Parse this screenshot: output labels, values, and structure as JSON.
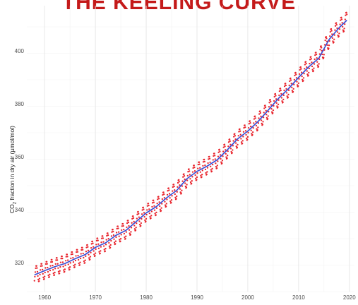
{
  "chart_data": {
    "type": "line",
    "title": "THE KEELING CURVE",
    "xlabel": "",
    "ylabel_parts": [
      "CO",
      "2",
      " fraction in dry air (µmol/mol)"
    ],
    "xlim": [
      1956.5,
      2021
    ],
    "ylim": [
      309,
      417
    ],
    "x_ticks": [
      1960,
      1970,
      1980,
      1990,
      2000,
      2010,
      2020
    ],
    "y_ticks": [
      320,
      340,
      360,
      380,
      400
    ],
    "grid": true,
    "series": [
      {
        "style": "trend line",
        "color": "#3b4fd6",
        "x": [
          1958,
          1960,
          1962,
          1964,
          1966,
          1968,
          1970,
          1972,
          1974,
          1976,
          1978,
          1980,
          1982,
          1984,
          1986,
          1988,
          1990,
          1992,
          1994,
          1996,
          1998,
          2000,
          2002,
          2004,
          2006,
          2008,
          2010,
          2012,
          2014,
          2016,
          2018,
          2019.5
        ],
        "values": [
          315.3,
          316.9,
          318.4,
          319.6,
          321.4,
          323.0,
          325.7,
          327.4,
          330.2,
          332.1,
          335.4,
          338.7,
          341.1,
          344.4,
          347.2,
          351.6,
          354.4,
          356.4,
          358.8,
          362.6,
          366.7,
          369.6,
          373.2,
          377.5,
          381.9,
          385.6,
          389.9,
          393.9,
          397.2,
          404.2,
          408.7,
          411.5
        ]
      },
      {
        "style": "monthly observations (dotted)",
        "color": "#e8232b",
        "seasonal_amplitude_ppm": 3.2,
        "x": [
          1958,
          1960,
          1962,
          1964,
          1966,
          1968,
          1970,
          1972,
          1974,
          1976,
          1978,
          1980,
          1982,
          1984,
          1986,
          1988,
          1990,
          1992,
          1994,
          1996,
          1998,
          2000,
          2002,
          2004,
          2006,
          2008,
          2010,
          2012,
          2014,
          2016,
          2018,
          2019.5
        ],
        "values": [
          315.3,
          316.9,
          318.4,
          319.6,
          321.4,
          323.0,
          325.7,
          327.4,
          330.2,
          332.1,
          335.4,
          338.7,
          341.1,
          344.4,
          347.2,
          351.6,
          354.4,
          356.4,
          358.8,
          362.6,
          366.7,
          369.6,
          373.2,
          377.5,
          381.9,
          385.6,
          389.9,
          393.9,
          397.2,
          404.2,
          408.7,
          411.5
        ]
      }
    ]
  }
}
